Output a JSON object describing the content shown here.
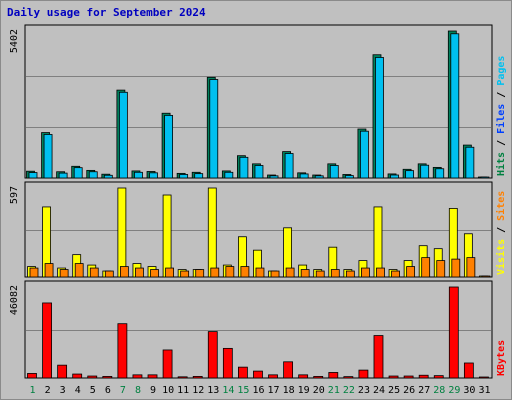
{
  "title": "Daily usage for September 2024",
  "chart_data": {
    "type": "bar",
    "title": "Daily usage for September 2024",
    "categories": [
      "1",
      "2",
      "3",
      "4",
      "5",
      "6",
      "7",
      "8",
      "9",
      "10",
      "11",
      "12",
      "13",
      "14",
      "15",
      "16",
      "17",
      "18",
      "19",
      "20",
      "21",
      "22",
      "23",
      "24",
      "25",
      "26",
      "27",
      "28",
      "29",
      "30",
      "31"
    ],
    "weekend_days": [
      "1",
      "7",
      "8",
      "14",
      "15",
      "21",
      "22",
      "28",
      "29"
    ],
    "panels": [
      {
        "name": "pages-files-hits",
        "max_label": "5402",
        "ylim": [
          0,
          5402
        ],
        "series": [
          {
            "name": "Hits",
            "color": "#00805c",
            "values": [
              250,
              1670,
              230,
              430,
              280,
              140,
              3230,
              260,
              240,
              2380,
              170,
              210,
              3700,
              260,
              820,
              520,
              110,
              970,
              190,
              110,
              520,
              130,
              1800,
              4530,
              150,
              320,
              520,
              390,
              5402,
              1210,
              0
            ]
          },
          {
            "name": "Files",
            "color": "#00c0f0",
            "values": [
              200,
              1600,
              180,
              380,
              230,
              100,
              3150,
              210,
              190,
              2300,
              130,
              160,
              3620,
              210,
              760,
              460,
              80,
              900,
              150,
              80,
              460,
              90,
              1720,
              4430,
              110,
              270,
              470,
              340,
              5300,
              1130,
              0
            ]
          },
          {
            "name": "Pages",
            "color": "#00c0f0",
            "values": [
              0,
              0,
              0,
              0,
              0,
              0,
              0,
              0,
              0,
              0,
              0,
              0,
              0,
              0,
              0,
              0,
              0,
              0,
              0,
              0,
              0,
              0,
              0,
              0,
              0,
              0,
              0,
              0,
              0,
              0,
              0
            ]
          }
        ],
        "legend_labels": [
          {
            "text": "Hits",
            "color": "#008040"
          },
          {
            "text": "Files",
            "color": "#0040ff"
          },
          {
            "text": "Pages",
            "color": "#00c0f0"
          }
        ]
      },
      {
        "name": "visits-sites",
        "max_label": "597",
        "ylim": [
          0,
          597
        ],
        "series": [
          {
            "name": "Visits",
            "color": "#ffff00",
            "values": [
              70,
              470,
              60,
              150,
              80,
              40,
              597,
              90,
              70,
              550,
              50,
              50,
              597,
              80,
              270,
              180,
              40,
              330,
              80,
              50,
              200,
              50,
              110,
              470,
              50,
              110,
              210,
              190,
              460,
              290,
              0
            ]
          },
          {
            "name": "Sites",
            "color": "#ff8000",
            "values": [
              60,
              90,
              50,
              90,
              60,
              40,
              70,
              60,
              50,
              60,
              40,
              50,
              60,
              70,
              70,
              60,
              40,
              60,
              50,
              40,
              50,
              40,
              60,
              60,
              40,
              70,
              130,
              110,
              120,
              130,
              0
            ]
          }
        ],
        "legend_labels": [
          {
            "text": "Visits",
            "color": "#ffff00"
          },
          {
            "text": "Sites",
            "color": "#ff8000"
          }
        ]
      },
      {
        "name": "kbytes",
        "max_label": "46082",
        "ylim": [
          0,
          46082
        ],
        "series": [
          {
            "name": "KBytes",
            "color": "#ff0000",
            "values": [
              2300,
              38000,
              6500,
              2000,
              1000,
              800,
              27500,
              1600,
              1600,
              14200,
              600,
              800,
              23500,
              15000,
              5500,
              3500,
              1600,
              8200,
              1600,
              800,
              2800,
              700,
              4000,
              21500,
              1000,
              1000,
              1400,
              1200,
              46082,
              7600,
              0
            ]
          }
        ],
        "legend_labels": [
          {
            "text": "KBytes",
            "color": "#ff0000"
          }
        ]
      }
    ],
    "grid": true
  }
}
